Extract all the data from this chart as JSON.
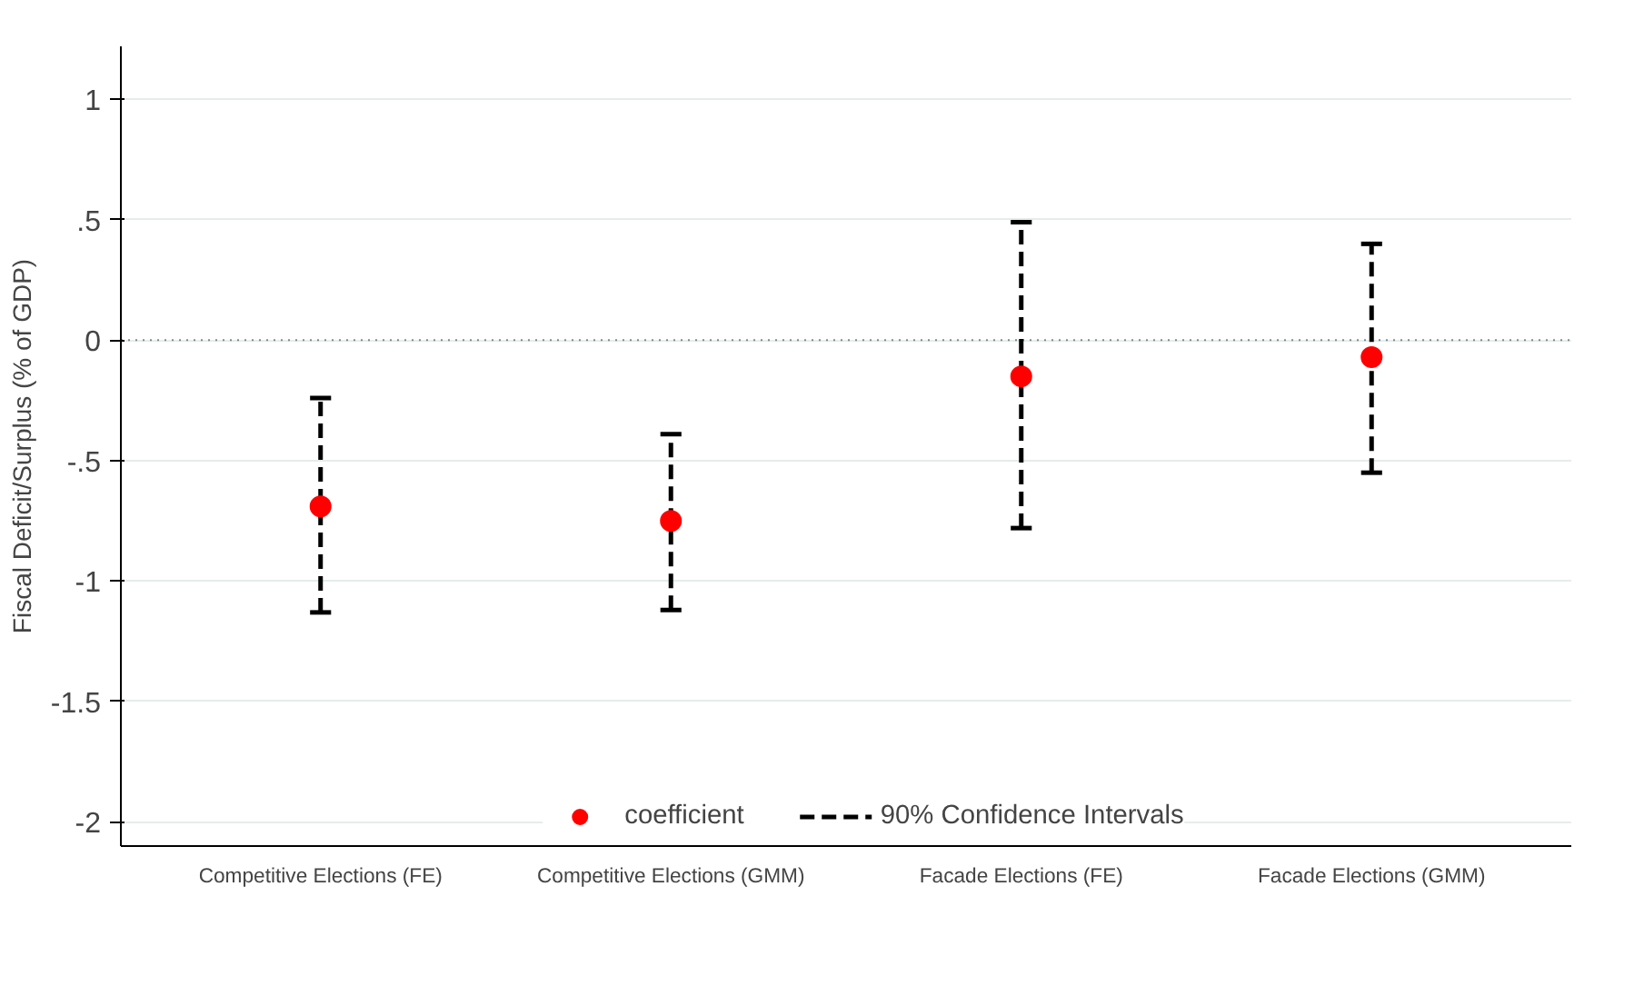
{
  "chart_data": {
    "type": "scatter",
    "ylabel": "Fiscal Deficit/Surplus (% of GDP)",
    "categories": [
      "Competitive Elections (FE)",
      "Competitive Elections (GMM)",
      "Facade Elections (FE)",
      "Facade Elections (GMM)"
    ],
    "series": [
      {
        "name": "coefficient",
        "color": "#ff0000",
        "marker": "circle",
        "values": [
          -0.69,
          -0.75,
          -0.15,
          -0.07
        ],
        "errors": [
          [
            -1.13,
            -0.24
          ],
          [
            -1.12,
            -0.39
          ],
          [
            -0.78,
            0.49
          ],
          [
            -0.55,
            0.4
          ]
        ]
      }
    ],
    "annotations": [
      "90% Confidence Intervals"
    ],
    "ylim": [
      -2.1,
      1.22
    ],
    "yticks": [
      {
        "value": 1,
        "label": "1"
      },
      {
        "value": 0.5,
        "label": ".5"
      },
      {
        "value": 0,
        "label": "0"
      },
      {
        "value": -0.5,
        "label": "-.5"
      },
      {
        "value": -1,
        "label": "-1"
      },
      {
        "value": -1.5,
        "label": "-1.5"
      },
      {
        "value": -2,
        "label": "-2"
      }
    ],
    "ref_lines": [
      {
        "axis": "y",
        "value": 0,
        "color": "#7f8c8c",
        "line_style": "dotted"
      }
    ],
    "grid": "y",
    "legend": "bottom"
  }
}
